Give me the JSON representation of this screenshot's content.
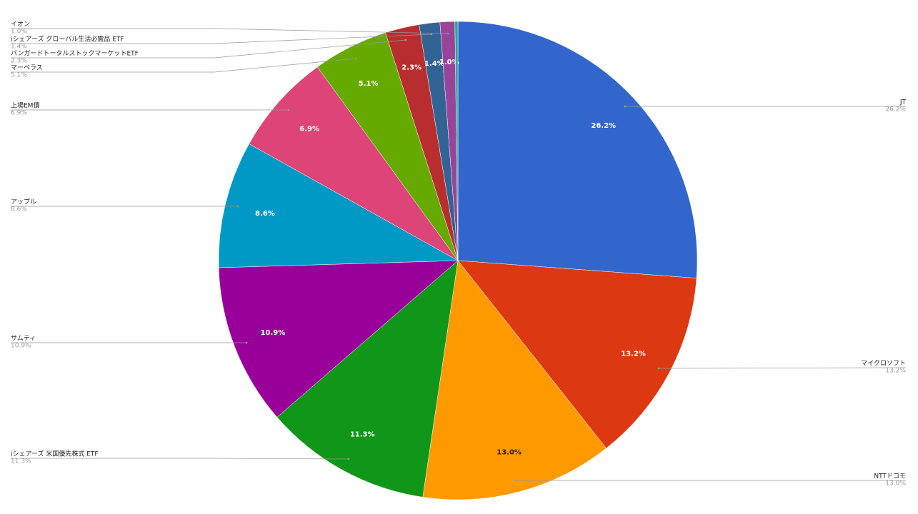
{
  "chart_data": {
    "type": "pie",
    "categories": [
      "JT",
      "マイクロソフト",
      "NTTドコモ",
      "iシェアーズ 米国優先株式 ETF",
      "サムティ",
      "アップル",
      "上場EM債",
      "マーベラス",
      "バンガードトータルストックマーケットETF",
      "iシェアーズ グローバル生活必需品 ETF",
      "イオン",
      null
    ],
    "values": [
      26.2,
      13.2,
      13.0,
      11.3,
      10.9,
      8.6,
      6.9,
      5.1,
      2.3,
      1.4,
      1.0,
      0.2
    ],
    "value_labels": [
      "26.2%",
      "13.2%",
      "13.0%",
      "11.3%",
      "10.9%",
      "8.6%",
      "6.9%",
      "5.1%",
      "2.3%",
      "1.4%",
      "1.0%",
      null
    ],
    "colors": [
      "#3366cc",
      "#dc3912",
      "#ff9900",
      "#109618",
      "#990099",
      "#0099c6",
      "#dd4477",
      "#66aa00",
      "#b82e2e",
      "#316395",
      "#994499",
      "#22aa99"
    ]
  }
}
